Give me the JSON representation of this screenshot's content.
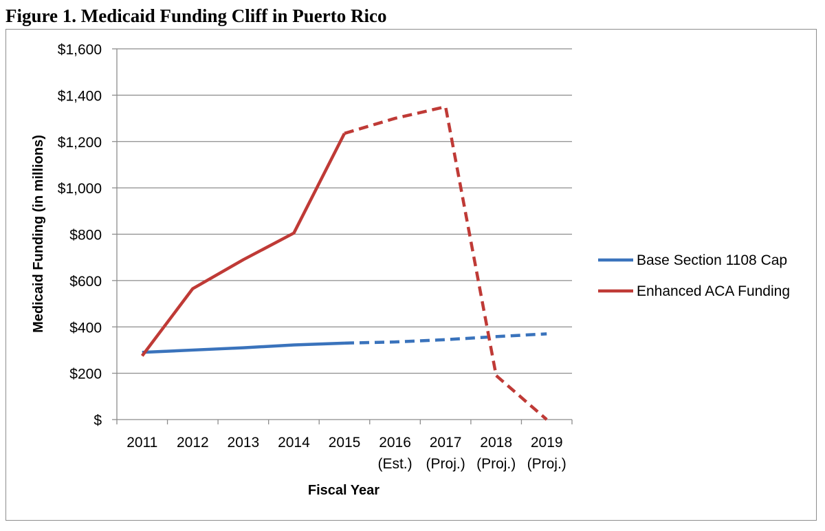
{
  "figure": {
    "title": "Figure 1. Medicaid Funding Cliff in Puerto Rico"
  },
  "chart_data": {
    "type": "line",
    "title": "Figure 1. Medicaid Funding Cliff in Puerto Rico",
    "xlabel": "Fiscal Year",
    "ylabel": "Medicaid Funding (in millions)",
    "ylim": [
      0,
      1600
    ],
    "y_ticks": [
      0,
      200,
      400,
      600,
      800,
      1000,
      1200,
      1400,
      1600
    ],
    "y_tick_labels": [
      "$",
      "$200",
      "$400",
      "$600",
      "$800",
      "$1,000",
      "$1,200",
      "$1,400",
      "$1,600"
    ],
    "categories": [
      "2011",
      "2012",
      "2013",
      "2014",
      "2015",
      "2016 (Est.)",
      "2017 (Proj.)",
      "2018 (Proj.)",
      "2019 (Proj.)"
    ],
    "category_lines": [
      [
        "2011"
      ],
      [
        "2012"
      ],
      [
        "2013"
      ],
      [
        "2014"
      ],
      [
        "2015"
      ],
      [
        "2016",
        "(Est.)"
      ],
      [
        "2017",
        "(Proj.)"
      ],
      [
        "2018",
        "(Proj.)"
      ],
      [
        "2019",
        "(Proj.)"
      ]
    ],
    "grid": true,
    "legend_position": "right",
    "series": [
      {
        "name": "Base Section 1108 Cap",
        "color": "#3a73bc",
        "values": [
          290,
          300,
          310,
          322,
          330,
          335,
          345,
          358,
          370
        ],
        "dashed_from_index": 4
      },
      {
        "name": "Enhanced ACA Funding",
        "color": "#bf3a36",
        "values": [
          275,
          565,
          690,
          805,
          1235,
          1300,
          1350,
          190,
          0
        ],
        "dashed_from_index": 4
      }
    ]
  }
}
